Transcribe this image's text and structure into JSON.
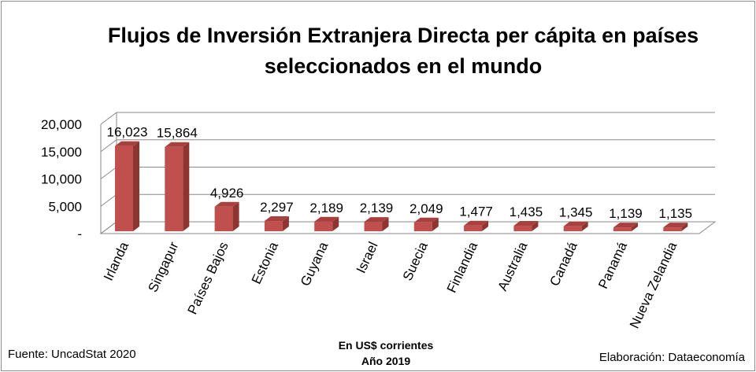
{
  "chart_data": {
    "type": "bar",
    "title_lines": [
      "Flujos de Inversión Extranjera Directa per cápita en países",
      "seleccionados en el mundo"
    ],
    "categories": [
      "Irlanda",
      "Singapur",
      "Países Bajos",
      "Estonia",
      "Guyana",
      "Israel",
      "Suecia",
      "Finlandia",
      "Australia",
      "Canadá",
      "Panamá",
      "Nueva Zelandia"
    ],
    "values": [
      16023,
      15864,
      4926,
      2297,
      2189,
      2139,
      2049,
      1477,
      1435,
      1345,
      1139,
      1135
    ],
    "value_labels": [
      "16,023",
      "15,864",
      "4,926",
      "2,297",
      "2,189",
      "2,139",
      "2,049",
      "1,477",
      "1,435",
      "1,345",
      "1,139",
      "1,135"
    ],
    "y_ticks": [
      0,
      5000,
      10000,
      15000,
      20000
    ],
    "y_tick_labels": [
      "-",
      "5,000",
      "10,000",
      "15,000",
      "20,000"
    ],
    "ylim": [
      0,
      20000
    ],
    "grid": true,
    "style": "3d-column",
    "bar_color": "#c0504d",
    "legend": "none"
  },
  "footer": {
    "source": "Fuente: UncadStat 2020",
    "units_line1": "En US$ corrientes",
    "units_line2": "Año 2019",
    "credit": "Elaboración: Dataeconomía"
  }
}
